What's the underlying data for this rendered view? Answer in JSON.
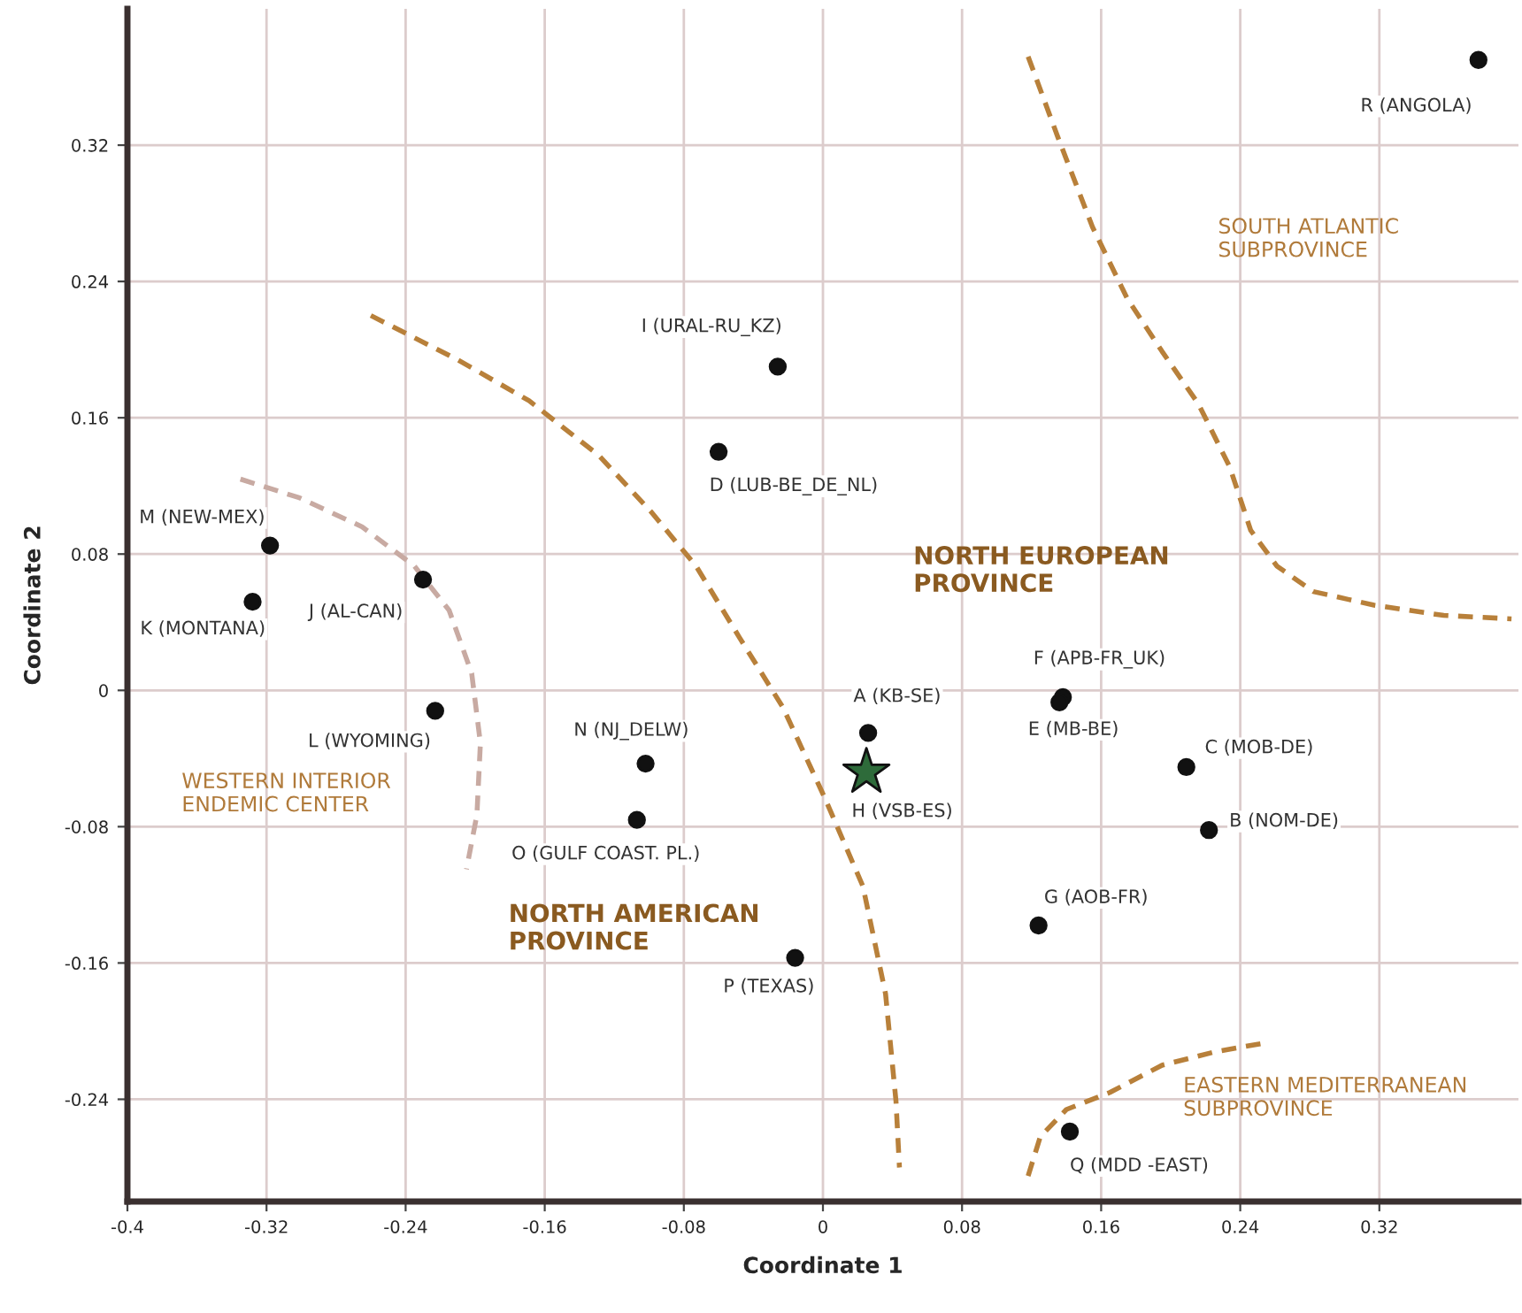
{
  "chart_data": {
    "type": "scatter",
    "xlabel": "Coordinate 1",
    "ylabel": "Coordinate 2",
    "xlim": [
      -0.4,
      0.4
    ],
    "ylim": [
      -0.3,
      0.4
    ],
    "xticks": [
      -0.4,
      -0.32,
      -0.24,
      -0.16,
      -0.08,
      0,
      0.08,
      0.16,
      0.24,
      0.32
    ],
    "yticks": [
      -0.24,
      -0.16,
      -0.08,
      0,
      0.08,
      0.16,
      0.24,
      0.32
    ],
    "grid": true,
    "legend": false,
    "series": [
      {
        "marker": "circle",
        "color": "#111111",
        "x": [
          0.377,
          -0.026,
          -0.06,
          -0.318,
          -0.328,
          -0.23,
          -0.223,
          -0.102,
          -0.107,
          -0.016,
          0.026,
          0.138,
          0.136,
          0.209,
          0.222,
          0.124,
          0.142
        ],
        "values": [
          0.37,
          0.19,
          0.14,
          0.085,
          0.052,
          0.065,
          -0.012,
          -0.043,
          -0.076,
          -0.157,
          -0.025,
          -0.004,
          -0.007,
          -0.045,
          -0.082,
          -0.138,
          -0.259
        ]
      },
      {
        "marker": "star",
        "color": "#2e6b3a",
        "x": [
          0.025
        ],
        "values": [
          -0.048
        ]
      },
      {
        "type": "line",
        "line_style": "dashed",
        "color": "#b8803a",
        "x": [
          -0.26,
          -0.21,
          -0.169,
          -0.129,
          -0.099,
          -0.073,
          -0.048,
          -0.023,
          0.001,
          0.023,
          0.036,
          0.042,
          0.044
        ],
        "values": [
          0.22,
          0.194,
          0.17,
          0.138,
          0.105,
          0.073,
          0.031,
          -0.01,
          -0.063,
          -0.115,
          -0.178,
          -0.241,
          -0.28
        ]
      },
      {
        "type": "line",
        "line_style": "dashed",
        "color": "#b8803a",
        "x": [
          0.118,
          0.135,
          0.155,
          0.175,
          0.195,
          0.216,
          0.234,
          0.246,
          0.261,
          0.282,
          0.317,
          0.357,
          0.396
        ],
        "values": [
          0.372,
          0.325,
          0.272,
          0.23,
          0.199,
          0.168,
          0.131,
          0.094,
          0.073,
          0.058,
          0.05,
          0.044,
          0.042
        ]
      },
      {
        "type": "line",
        "line_style": "dashed",
        "color": "#c8aaa2",
        "x": [
          -0.335,
          -0.301,
          -0.265,
          -0.235,
          -0.215,
          -0.202,
          -0.197,
          -0.199,
          -0.205
        ],
        "values": [
          0.124,
          0.113,
          0.096,
          0.073,
          0.047,
          0.01,
          -0.031,
          -0.073,
          -0.105
        ]
      },
      {
        "type": "line",
        "line_style": "dashed",
        "color": "#b8803a",
        "x": [
          0.118,
          0.125,
          0.14,
          0.165,
          0.195,
          0.226,
          0.254
        ],
        "values": [
          -0.285,
          -0.262,
          -0.246,
          -0.236,
          -0.22,
          -0.212,
          -0.207
        ]
      }
    ],
    "annotations": [
      "NORTH EUROPEAN\nPROVINCE",
      "SOUTH ATLANTIC\nSUBPROVINCE",
      "WESTERN INTERIOR\nENDEMIC CENTER",
      "NORTH AMERICAN\nPROVINCE",
      "EASTERN MEDITERRANEAN\nSUBPROVINCE",
      {
        "text": "R (ANGOLA)",
        "x": 0.377,
        "y": 0.37
      },
      {
        "text": "I (URAL-RU_KZ)",
        "x": -0.026,
        "y": 0.19
      },
      {
        "text": "D (LUB-BE_DE_NL)",
        "x": -0.06,
        "y": 0.14
      },
      {
        "text": "M (NEW-MEX)",
        "x": -0.318,
        "y": 0.085
      },
      {
        "text": "K (MONTANA)",
        "x": -0.328,
        "y": 0.052
      },
      {
        "text": "J (AL-CAN)",
        "x": -0.23,
        "y": 0.065
      },
      {
        "text": "L (WYOMING)",
        "x": -0.223,
        "y": -0.012
      },
      {
        "text": "N (NJ_DELW)",
        "x": -0.102,
        "y": -0.043
      },
      {
        "text": "O (GULF COAST. PL.)",
        "x": -0.107,
        "y": -0.076
      },
      {
        "text": "P (TEXAS)",
        "x": -0.016,
        "y": -0.157
      },
      {
        "text": "A (KB-SE)",
        "x": 0.026,
        "y": -0.025
      },
      {
        "text": "H (VSB-ES)",
        "x": 0.025,
        "y": -0.048
      },
      {
        "text": "F (APB-FR_UK)",
        "x": 0.138,
        "y": -0.004
      },
      {
        "text": "E (MB-BE)",
        "x": 0.136,
        "y": -0.007
      },
      {
        "text": "C (MOB-DE)",
        "x": 0.209,
        "y": -0.045
      },
      {
        "text": "B (NOM-DE)",
        "x": 0.222,
        "y": -0.082
      },
      {
        "text": "G (AOB-FR)",
        "x": 0.124,
        "y": -0.138
      },
      {
        "text": "Q (MDD -EAST)",
        "x": 0.142,
        "y": -0.259
      }
    ]
  }
}
